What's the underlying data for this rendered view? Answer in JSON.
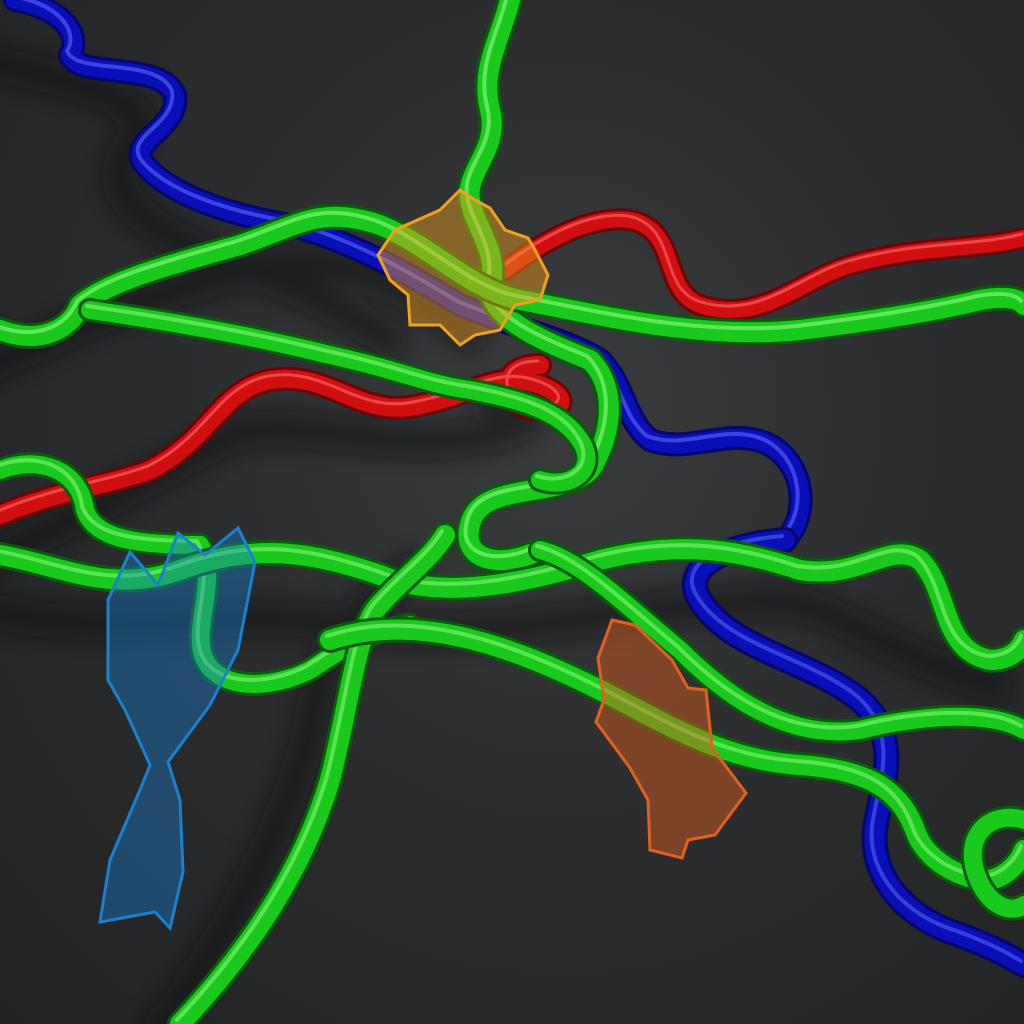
{
  "scene": {
    "background_color": "#2c2d2f",
    "tube_colors": {
      "green": "#19c91b",
      "red": "#d01010",
      "blue": "#0a10b8"
    },
    "annotation_colors": {
      "yellow_region": "#f0a020",
      "blue_region": "#1a80d0",
      "orange_region": "#e06020"
    }
  }
}
